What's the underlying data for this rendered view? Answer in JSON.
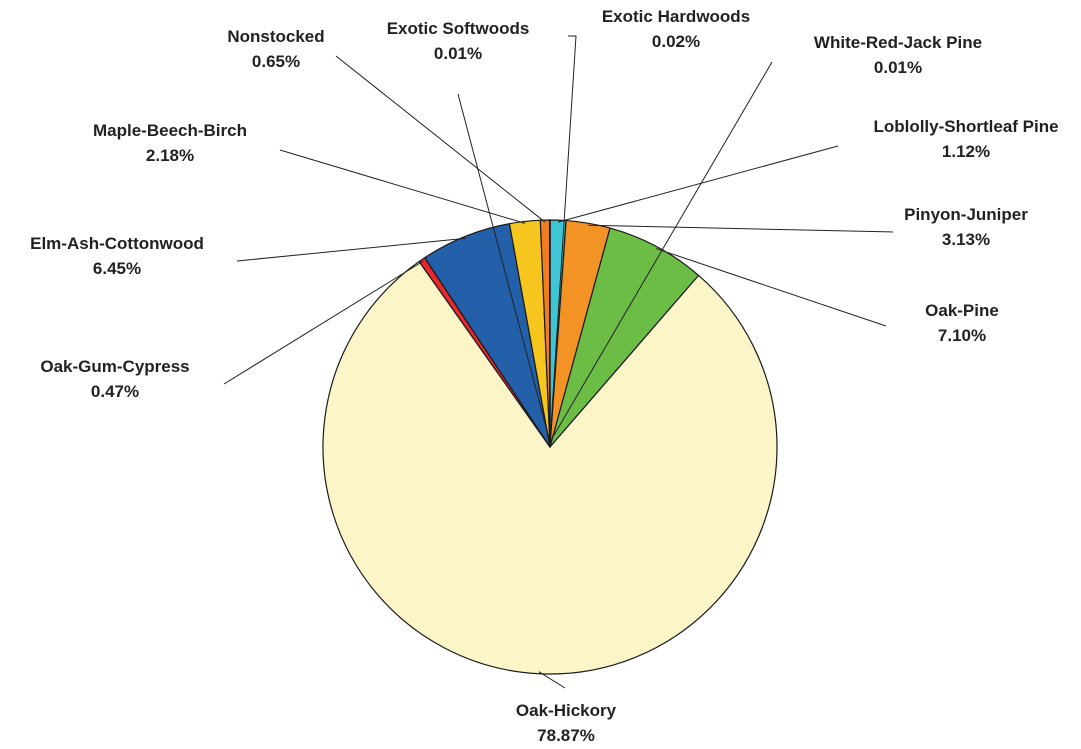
{
  "chart_data": {
    "type": "pie",
    "title": "",
    "start_angle": "12 o'clock",
    "direction": "clockwise",
    "slices": [
      {
        "label": "White-Red-Jack Pine",
        "value": 0.01,
        "value_label": "0.01%",
        "color": "#d64541"
      },
      {
        "label": "Loblolly-Shortleaf Pine",
        "value": 1.12,
        "value_label": "1.12%",
        "color": "#3fc6d4"
      },
      {
        "label": "Pinyon-Juniper",
        "value": 3.13,
        "value_label": "3.13%",
        "color": "#f39325"
      },
      {
        "label": "Oak-Pine",
        "value": 7.1,
        "value_label": "7.10%",
        "color": "#6cbd45"
      },
      {
        "label": "Oak-Hickory",
        "value": 78.87,
        "value_label": "78.87%",
        "color": "#fbf5c8"
      },
      {
        "label": "Oak-Gum-Cypress",
        "value": 0.47,
        "value_label": "0.47%",
        "color": "#e8282a"
      },
      {
        "label": "Elm-Ash-Cottonwood",
        "value": 6.45,
        "value_label": "6.45%",
        "color": "#2460aa"
      },
      {
        "label": "Maple-Beech-Birch",
        "value": 2.18,
        "value_label": "2.18%",
        "color": "#f6c51e"
      },
      {
        "label": "Nonstocked",
        "value": 0.65,
        "value_label": "0.65%",
        "color": "#f07d20"
      },
      {
        "label": "Exotic Softwoods",
        "value": 0.01,
        "value_label": "0.01%",
        "color": "#9b59b6"
      },
      {
        "label": "Exotic Hardwoods",
        "value": 0.02,
        "value_label": "0.02%",
        "color": "#2e8b57"
      }
    ]
  }
}
